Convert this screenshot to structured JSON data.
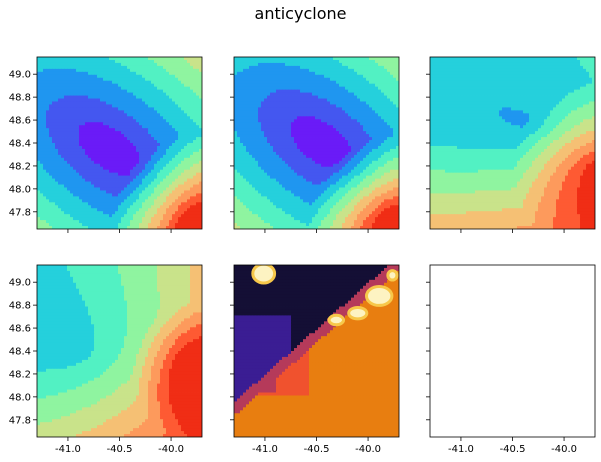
{
  "chart_data": {
    "title": "anticyclone",
    "type": "contourf",
    "layout": {
      "rows": 2,
      "cols": 3,
      "sharex": true,
      "sharey": true
    },
    "xlim": [
      -41.3,
      -39.7
    ],
    "ylim": [
      47.65,
      49.15
    ],
    "xticks": [
      -41.0,
      -40.5,
      -40.0
    ],
    "xtick_labels": [
      "-41.0",
      "-40.5",
      "-40.0"
    ],
    "yticks": [
      47.8,
      48.0,
      48.2,
      48.4,
      48.6,
      48.8,
      49.0
    ],
    "ytick_labels": [
      "47.8",
      "48.0",
      "48.2",
      "48.4",
      "48.6",
      "48.8",
      "49.0"
    ],
    "colormaps": [
      "rainbow",
      "rainbow",
      "rainbow",
      "rainbow",
      "inferno-like",
      "none"
    ],
    "panels": [
      {
        "row": 0,
        "col": 0,
        "pattern": "low-centre",
        "centre": [
          -40.6,
          48.35
        ],
        "high_corner": "bottom-right",
        "empty": false
      },
      {
        "row": 0,
        "col": 1,
        "pattern": "low-centre",
        "centre": [
          -40.45,
          48.4
        ],
        "high_corner": "bottom-right",
        "empty": false
      },
      {
        "row": 0,
        "col": 2,
        "pattern": "low-top",
        "centre": [
          -40.3,
          48.55
        ],
        "high_corner": "right",
        "empty": false
      },
      {
        "row": 1,
        "col": 0,
        "pattern": "low-left",
        "centre": [
          -40.9,
          48.4
        ],
        "high_corner": "bottom-right",
        "empty": false
      },
      {
        "row": 1,
        "col": 1,
        "pattern": "dark-diagonal",
        "high_corner": "bottom-right",
        "empty": false
      },
      {
        "row": 1,
        "col": 2,
        "empty": true
      }
    ]
  },
  "colors": {
    "rainbow": [
      "#6a1bf7",
      "#4457f0",
      "#1f96f0",
      "#25d0dc",
      "#52f1c3",
      "#8ff4a0",
      "#c9e38a",
      "#f5c074",
      "#fd9a5c",
      "#fe5a33",
      "#f02d15"
    ],
    "inferno": [
      "#140f35",
      "#3a1d93",
      "#7b2a8c",
      "#b53a5a",
      "#f0522e",
      "#e87e10",
      "#f7c84a",
      "#fdf3c2"
    ]
  }
}
